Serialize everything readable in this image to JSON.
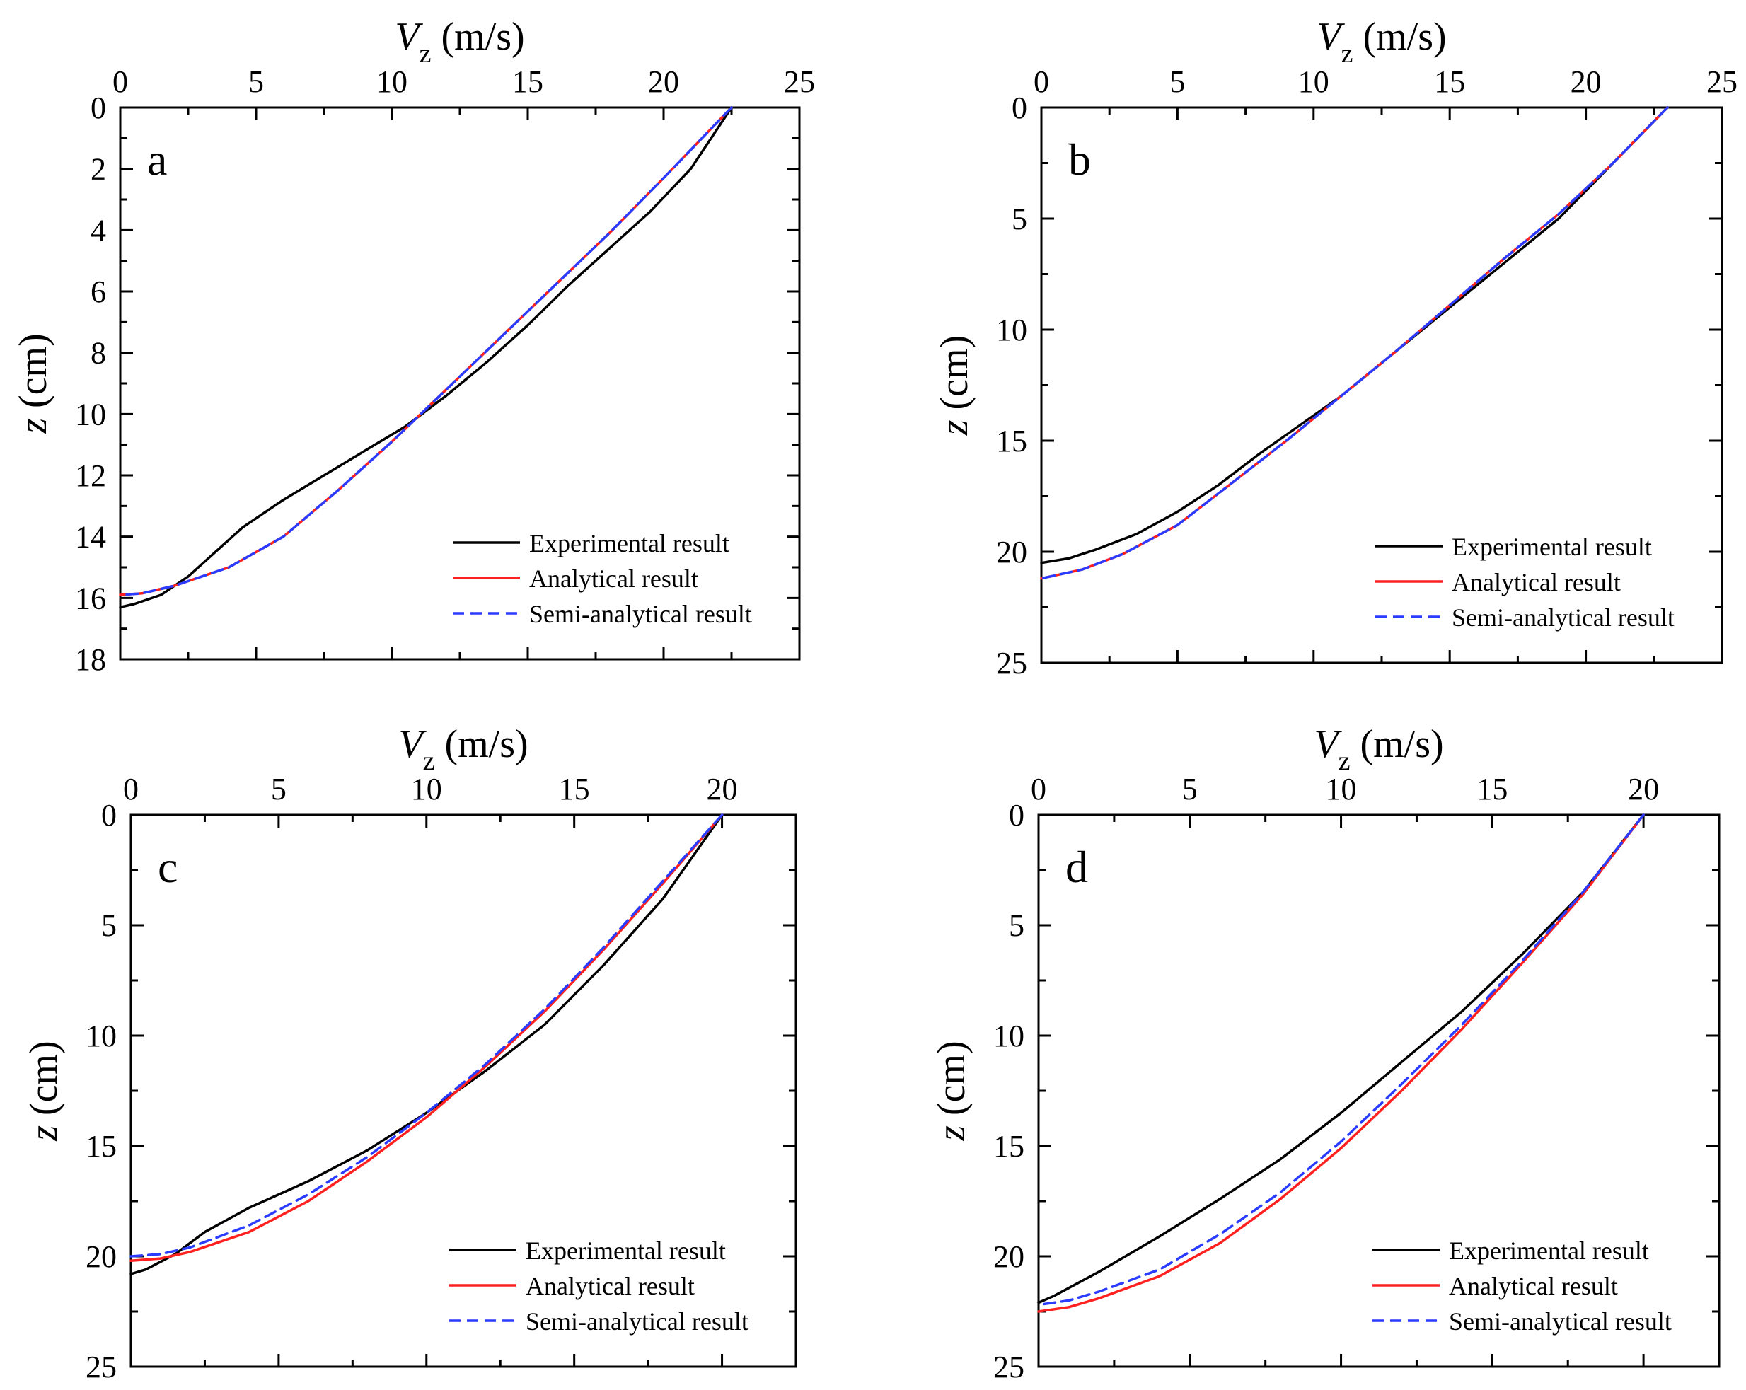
{
  "chart_data": [
    {
      "type": "line",
      "panel_label": "a",
      "xlabel_var": "V",
      "xlabel_sub": "z",
      "xlabel_unit": "(m/s)",
      "ylabel_var": "z",
      "ylabel_unit": "(cm)",
      "xlim": [
        0,
        25
      ],
      "ylim": [
        0,
        18
      ],
      "y_inverted": true,
      "x_ticks": [
        0,
        5,
        10,
        15,
        20,
        25
      ],
      "y_ticks": [
        0,
        2,
        4,
        6,
        8,
        10,
        12,
        14,
        16,
        18
      ],
      "legend_position": "bottom-right",
      "series": [
        {
          "name": "Experimental result",
          "color": "#000000",
          "dash": "solid",
          "points": [
            [
              22.5,
              0
            ],
            [
              21,
              2
            ],
            [
              19.5,
              3.4
            ],
            [
              18,
              4.6
            ],
            [
              16.5,
              5.8
            ],
            [
              15,
              7.1
            ],
            [
              13.5,
              8.3
            ],
            [
              12,
              9.4
            ],
            [
              10.5,
              10.4
            ],
            [
              9,
              11.2
            ],
            [
              7.5,
              12.0
            ],
            [
              6,
              12.8
            ],
            [
              4.5,
              13.7
            ],
            [
              3.5,
              14.5
            ],
            [
              2.5,
              15.3
            ],
            [
              1.5,
              15.9
            ],
            [
              0.5,
              16.2
            ],
            [
              0,
              16.3
            ]
          ]
        },
        {
          "name": "Analytical result",
          "color": "#ff2020",
          "dash": "solid",
          "points": [
            [
              22.5,
              0
            ],
            [
              20,
              2.3
            ],
            [
              18,
              4.1
            ],
            [
              16,
              5.8
            ],
            [
              14,
              7.5
            ],
            [
              12,
              9.2
            ],
            [
              10,
              10.9
            ],
            [
              8,
              12.5
            ],
            [
              6,
              14.0
            ],
            [
              4,
              15.0
            ],
            [
              2,
              15.6
            ],
            [
              0.8,
              15.85
            ],
            [
              0,
              15.9
            ]
          ]
        },
        {
          "name": "Semi-analytical result",
          "color": "#2a3cff",
          "dash": "dashed",
          "points": [
            [
              22.5,
              0
            ],
            [
              20,
              2.3
            ],
            [
              18,
              4.1
            ],
            [
              16,
              5.8
            ],
            [
              14,
              7.5
            ],
            [
              12,
              9.2
            ],
            [
              10,
              10.9
            ],
            [
              8,
              12.5
            ],
            [
              6,
              14.0
            ],
            [
              4,
              15.0
            ],
            [
              2,
              15.6
            ],
            [
              0.8,
              15.85
            ],
            [
              0,
              15.9
            ]
          ]
        }
      ]
    },
    {
      "type": "line",
      "panel_label": "b",
      "xlabel_var": "V",
      "xlabel_sub": "z",
      "xlabel_unit": "(m/s)",
      "ylabel_var": "z",
      "ylabel_unit": "(cm)",
      "xlim": [
        0,
        25
      ],
      "ylim": [
        0,
        25
      ],
      "y_inverted": true,
      "x_ticks": [
        0,
        5,
        10,
        15,
        20,
        25
      ],
      "y_ticks": [
        0,
        5,
        10,
        15,
        20,
        25
      ],
      "legend_position": "bottom-right",
      "series": [
        {
          "name": "Experimental result",
          "color": "#000000",
          "dash": "solid",
          "points": [
            [
              23,
              0
            ],
            [
              21,
              2.5
            ],
            [
              19,
              5
            ],
            [
              17,
              7
            ],
            [
              15.5,
              8.5
            ],
            [
              14,
              10
            ],
            [
              12.5,
              11.5
            ],
            [
              11,
              13
            ],
            [
              9.5,
              14.3
            ],
            [
              8,
              15.6
            ],
            [
              6.5,
              17
            ],
            [
              5,
              18.2
            ],
            [
              3.5,
              19.2
            ],
            [
              2,
              19.9
            ],
            [
              1,
              20.3
            ],
            [
              0,
              20.5
            ]
          ]
        },
        {
          "name": "Analytical result",
          "color": "#ff2020",
          "dash": "solid",
          "points": [
            [
              23,
              0
            ],
            [
              21,
              2.5
            ],
            [
              19,
              4.8
            ],
            [
              17,
              6.8
            ],
            [
              15,
              8.9
            ],
            [
              13,
              11.0
            ],
            [
              11,
              13.0
            ],
            [
              9,
              15.0
            ],
            [
              7,
              16.9
            ],
            [
              5,
              18.8
            ],
            [
              3,
              20.1
            ],
            [
              1.5,
              20.8
            ],
            [
              0,
              21.2
            ]
          ]
        },
        {
          "name": "Semi-analytical result",
          "color": "#2a3cff",
          "dash": "dashed",
          "points": [
            [
              23,
              0
            ],
            [
              21,
              2.5
            ],
            [
              19,
              4.8
            ],
            [
              17,
              6.8
            ],
            [
              15,
              8.9
            ],
            [
              13,
              11.0
            ],
            [
              11,
              13.0
            ],
            [
              9,
              15.0
            ],
            [
              7,
              16.9
            ],
            [
              5,
              18.8
            ],
            [
              3,
              20.1
            ],
            [
              1.5,
              20.8
            ],
            [
              0,
              21.2
            ]
          ]
        }
      ]
    },
    {
      "type": "line",
      "panel_label": "c",
      "xlabel_var": "V",
      "xlabel_sub": "z",
      "xlabel_unit": "(m/s)",
      "ylabel_var": "z",
      "ylabel_unit": "(cm)",
      "xlim": [
        0,
        22.5
      ],
      "ylim": [
        0,
        25
      ],
      "y_inverted": true,
      "x_ticks": [
        0,
        5,
        10,
        15,
        20
      ],
      "y_ticks": [
        0,
        5,
        10,
        15,
        20,
        25
      ],
      "legend_position": "bottom-right",
      "series": [
        {
          "name": "Experimental result",
          "color": "#000000",
          "dash": "solid",
          "points": [
            [
              20,
              0
            ],
            [
              18,
              3.8
            ],
            [
              16,
              6.8
            ],
            [
              14,
              9.5
            ],
            [
              12,
              11.6
            ],
            [
              10,
              13.5
            ],
            [
              8,
              15.2
            ],
            [
              6,
              16.6
            ],
            [
              4,
              17.8
            ],
            [
              2.5,
              18.9
            ],
            [
              1.5,
              19.9
            ],
            [
              0.5,
              20.6
            ],
            [
              0,
              20.8
            ]
          ]
        },
        {
          "name": "Analytical result",
          "color": "#ff2020",
          "dash": "solid",
          "points": [
            [
              20,
              0
            ],
            [
              18,
              3.1
            ],
            [
              16,
              6.1
            ],
            [
              14,
              8.9
            ],
            [
              12,
              11.4
            ],
            [
              10,
              13.7
            ],
            [
              8,
              15.7
            ],
            [
              6,
              17.5
            ],
            [
              4,
              18.9
            ],
            [
              2,
              19.8
            ],
            [
              1,
              20.1
            ],
            [
              0,
              20.2
            ]
          ]
        },
        {
          "name": "Semi-analytical result",
          "color": "#2a3cff",
          "dash": "dashed",
          "points": [
            [
              20,
              0
            ],
            [
              18,
              3.0
            ],
            [
              16,
              6.0
            ],
            [
              14,
              8.8
            ],
            [
              12,
              11.3
            ],
            [
              10,
              13.5
            ],
            [
              8,
              15.5
            ],
            [
              6,
              17.2
            ],
            [
              4,
              18.6
            ],
            [
              2,
              19.6
            ],
            [
              1,
              19.9
            ],
            [
              0,
              20.0
            ]
          ]
        }
      ]
    },
    {
      "type": "line",
      "panel_label": "d",
      "xlabel_var": "V",
      "xlabel_sub": "z",
      "xlabel_unit": "(m/s)",
      "ylabel_var": "z",
      "ylabel_unit": "(cm)",
      "xlim": [
        0,
        22.5
      ],
      "ylim": [
        0,
        25
      ],
      "y_inverted": true,
      "x_ticks": [
        0,
        5,
        10,
        15,
        20
      ],
      "y_ticks": [
        0,
        5,
        10,
        15,
        20,
        25
      ],
      "legend_position": "bottom-right",
      "series": [
        {
          "name": "Experimental result",
          "color": "#000000",
          "dash": "solid",
          "points": [
            [
              20,
              0
            ],
            [
              18,
              3.5
            ],
            [
              16,
              6.3
            ],
            [
              14,
              8.9
            ],
            [
              12,
              11.2
            ],
            [
              10,
              13.5
            ],
            [
              8,
              15.6
            ],
            [
              6,
              17.4
            ],
            [
              4,
              19.1
            ],
            [
              2,
              20.7
            ],
            [
              0.5,
              21.8
            ],
            [
              0,
              22.1
            ]
          ]
        },
        {
          "name": "Analytical result",
          "color": "#ff2020",
          "dash": "solid",
          "points": [
            [
              20,
              0
            ],
            [
              18,
              3.6
            ],
            [
              16,
              6.7
            ],
            [
              14,
              9.7
            ],
            [
              12,
              12.5
            ],
            [
              10,
              15.1
            ],
            [
              8,
              17.4
            ],
            [
              6,
              19.4
            ],
            [
              4,
              20.9
            ],
            [
              2,
              21.9
            ],
            [
              1,
              22.3
            ],
            [
              0,
              22.5
            ]
          ]
        },
        {
          "name": "Semi-analytical result",
          "color": "#2a3cff",
          "dash": "dashed",
          "points": [
            [
              20,
              0
            ],
            [
              18,
              3.5
            ],
            [
              16,
              6.6
            ],
            [
              14,
              9.5
            ],
            [
              12,
              12.2
            ],
            [
              10,
              14.8
            ],
            [
              8,
              17.1
            ],
            [
              6,
              19.0
            ],
            [
              4,
              20.6
            ],
            [
              2,
              21.6
            ],
            [
              1,
              22.0
            ],
            [
              0,
              22.2
            ]
          ]
        }
      ]
    }
  ]
}
